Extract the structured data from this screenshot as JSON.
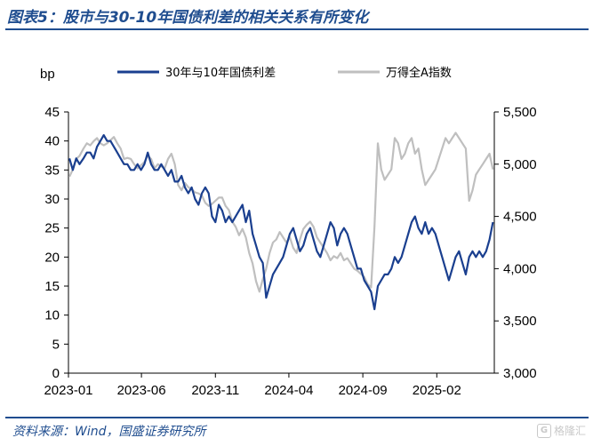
{
  "header": {
    "title": "图表5：股市与30-10年国债利差的相关关系有所变化"
  },
  "footer": {
    "source": "资料来源：Wind，国盛证券研究所",
    "watermark": "格隆汇"
  },
  "colors": {
    "spread": "#1a3f8f",
    "index": "#bfbfbf",
    "accent": "#1f4d8f"
  },
  "chart_data": {
    "type": "line",
    "ylabel": "bp",
    "x_ticks": [
      "2023-01",
      "2023-06",
      "2023-11",
      "2024-04",
      "2024-09",
      "2025-02"
    ],
    "x_range": [
      "2023-01-01",
      "2025-05-31"
    ],
    "y_left": {
      "range": [
        0,
        45
      ],
      "ticks": [
        "0",
        "5",
        "10",
        "15",
        "20",
        "25",
        "30",
        "35",
        "40",
        "45"
      ],
      "tick_values": [
        0,
        5,
        10,
        15,
        20,
        25,
        30,
        35,
        40,
        45
      ]
    },
    "y_right": {
      "range": [
        3000,
        5500
      ],
      "ticks": [
        "3,000",
        "3,500",
        "4,000",
        "4,500",
        "5,000",
        "5,500"
      ],
      "tick_values": [
        3000,
        3500,
        4000,
        4500,
        5000,
        5500
      ]
    },
    "legend_position": "top",
    "grid": false,
    "series": [
      {
        "name": "30年与10年国债利差",
        "axis": "left",
        "points": [
          [
            "2023-01-03",
            37
          ],
          [
            "2023-01-10",
            35
          ],
          [
            "2023-01-17",
            37
          ],
          [
            "2023-01-24",
            36
          ],
          [
            "2023-02-01",
            37
          ],
          [
            "2023-02-08",
            38
          ],
          [
            "2023-02-15",
            38
          ],
          [
            "2023-02-22",
            37
          ],
          [
            "2023-03-01",
            39
          ],
          [
            "2023-03-08",
            40
          ],
          [
            "2023-03-15",
            41
          ],
          [
            "2023-03-22",
            40
          ],
          [
            "2023-03-29",
            40
          ],
          [
            "2023-04-05",
            39
          ],
          [
            "2023-04-12",
            38
          ],
          [
            "2023-04-19",
            37
          ],
          [
            "2023-04-26",
            36
          ],
          [
            "2023-05-03",
            36
          ],
          [
            "2023-05-10",
            35
          ],
          [
            "2023-05-17",
            35
          ],
          [
            "2023-05-24",
            36
          ],
          [
            "2023-05-31",
            35
          ],
          [
            "2023-06-07",
            36
          ],
          [
            "2023-06-14",
            38
          ],
          [
            "2023-06-21",
            36
          ],
          [
            "2023-06-28",
            35
          ],
          [
            "2023-07-05",
            35
          ],
          [
            "2023-07-12",
            36
          ],
          [
            "2023-07-19",
            35
          ],
          [
            "2023-07-26",
            34
          ],
          [
            "2023-08-02",
            35
          ],
          [
            "2023-08-09",
            33
          ],
          [
            "2023-08-16",
            33
          ],
          [
            "2023-08-23",
            34
          ],
          [
            "2023-08-30",
            32
          ],
          [
            "2023-09-06",
            31
          ],
          [
            "2023-09-13",
            32
          ],
          [
            "2023-09-20",
            30
          ],
          [
            "2023-09-27",
            29
          ],
          [
            "2023-10-04",
            31
          ],
          [
            "2023-10-11",
            32
          ],
          [
            "2023-10-18",
            31
          ],
          [
            "2023-10-25",
            27
          ],
          [
            "2023-11-01",
            26
          ],
          [
            "2023-11-08",
            29
          ],
          [
            "2023-11-15",
            28
          ],
          [
            "2023-11-22",
            26
          ],
          [
            "2023-11-29",
            27
          ],
          [
            "2023-12-06",
            26
          ],
          [
            "2023-12-13",
            27
          ],
          [
            "2023-12-20",
            28
          ],
          [
            "2023-12-27",
            29
          ],
          [
            "2024-01-03",
            26
          ],
          [
            "2024-01-10",
            28
          ],
          [
            "2024-01-17",
            24
          ],
          [
            "2024-01-24",
            22
          ],
          [
            "2024-01-31",
            20
          ],
          [
            "2024-02-07",
            19
          ],
          [
            "2024-02-14",
            13
          ],
          [
            "2024-02-21",
            15
          ],
          [
            "2024-02-28",
            17
          ],
          [
            "2024-03-06",
            18
          ],
          [
            "2024-03-13",
            19
          ],
          [
            "2024-03-20",
            20
          ],
          [
            "2024-03-27",
            22
          ],
          [
            "2024-04-03",
            24
          ],
          [
            "2024-04-10",
            25
          ],
          [
            "2024-04-17",
            23
          ],
          [
            "2024-04-24",
            21
          ],
          [
            "2024-05-01",
            22
          ],
          [
            "2024-05-08",
            24
          ],
          [
            "2024-05-15",
            25
          ],
          [
            "2024-05-22",
            23
          ],
          [
            "2024-05-29",
            21
          ],
          [
            "2024-06-05",
            20
          ],
          [
            "2024-06-12",
            22
          ],
          [
            "2024-06-19",
            24
          ],
          [
            "2024-06-26",
            26
          ],
          [
            "2024-07-03",
            25
          ],
          [
            "2024-07-10",
            22
          ],
          [
            "2024-07-17",
            24
          ],
          [
            "2024-07-24",
            25
          ],
          [
            "2024-07-31",
            24
          ],
          [
            "2024-08-07",
            22
          ],
          [
            "2024-08-14",
            20
          ],
          [
            "2024-08-21",
            18
          ],
          [
            "2024-08-28",
            18
          ],
          [
            "2024-09-04",
            16
          ],
          [
            "2024-09-11",
            15
          ],
          [
            "2024-09-18",
            14
          ],
          [
            "2024-09-25",
            11
          ],
          [
            "2024-10-02",
            15
          ],
          [
            "2024-10-09",
            16
          ],
          [
            "2024-10-16",
            17
          ],
          [
            "2024-10-23",
            17
          ],
          [
            "2024-10-30",
            18
          ],
          [
            "2024-11-06",
            20
          ],
          [
            "2024-11-13",
            19
          ],
          [
            "2024-11-20",
            20
          ],
          [
            "2024-11-27",
            22
          ],
          [
            "2024-12-04",
            24
          ],
          [
            "2024-12-11",
            26
          ],
          [
            "2024-12-18",
            27
          ],
          [
            "2024-12-25",
            25
          ],
          [
            "2025-01-01",
            24
          ],
          [
            "2025-01-08",
            26
          ],
          [
            "2025-01-15",
            24
          ],
          [
            "2025-01-22",
            25
          ],
          [
            "2025-01-29",
            24
          ],
          [
            "2025-02-05",
            22
          ],
          [
            "2025-02-12",
            20
          ],
          [
            "2025-02-19",
            18
          ],
          [
            "2025-02-26",
            16
          ],
          [
            "2025-03-05",
            18
          ],
          [
            "2025-03-12",
            20
          ],
          [
            "2025-03-19",
            21
          ],
          [
            "2025-03-26",
            19
          ],
          [
            "2025-04-02",
            17
          ],
          [
            "2025-04-09",
            20
          ],
          [
            "2025-04-16",
            21
          ],
          [
            "2025-04-23",
            20
          ],
          [
            "2025-04-30",
            21
          ],
          [
            "2025-05-07",
            20
          ],
          [
            "2025-05-14",
            21
          ],
          [
            "2025-05-21",
            23
          ],
          [
            "2025-05-28",
            26
          ]
        ]
      },
      {
        "name": "万得全A指数",
        "axis": "right",
        "points": [
          [
            "2023-01-03",
            4880
          ],
          [
            "2023-01-10",
            4950
          ],
          [
            "2023-01-17",
            5050
          ],
          [
            "2023-01-24",
            5080
          ],
          [
            "2023-02-01",
            5150
          ],
          [
            "2023-02-08",
            5200
          ],
          [
            "2023-02-15",
            5180
          ],
          [
            "2023-02-22",
            5220
          ],
          [
            "2023-03-01",
            5250
          ],
          [
            "2023-03-08",
            5200
          ],
          [
            "2023-03-15",
            5180
          ],
          [
            "2023-03-22",
            5200
          ],
          [
            "2023-03-29",
            5230
          ],
          [
            "2023-04-05",
            5260
          ],
          [
            "2023-04-12",
            5200
          ],
          [
            "2023-04-19",
            5150
          ],
          [
            "2023-04-26",
            5050
          ],
          [
            "2023-05-03",
            5060
          ],
          [
            "2023-05-10",
            5050
          ],
          [
            "2023-05-17",
            5000
          ],
          [
            "2023-05-24",
            4960
          ],
          [
            "2023-05-31",
            4990
          ],
          [
            "2023-06-07",
            5020
          ],
          [
            "2023-06-14",
            5080
          ],
          [
            "2023-06-21",
            5050
          ],
          [
            "2023-06-28",
            4960
          ],
          [
            "2023-07-05",
            5000
          ],
          [
            "2023-07-12",
            4980
          ],
          [
            "2023-07-19",
            4960
          ],
          [
            "2023-07-26",
            5050
          ],
          [
            "2023-08-02",
            5100
          ],
          [
            "2023-08-09",
            5000
          ],
          [
            "2023-08-16",
            4800
          ],
          [
            "2023-08-23",
            4750
          ],
          [
            "2023-08-30",
            4820
          ],
          [
            "2023-09-06",
            4780
          ],
          [
            "2023-09-13",
            4760
          ],
          [
            "2023-09-20",
            4730
          ],
          [
            "2023-09-27",
            4720
          ],
          [
            "2023-10-04",
            4700
          ],
          [
            "2023-10-11",
            4630
          ],
          [
            "2023-10-18",
            4600
          ],
          [
            "2023-10-25",
            4620
          ],
          [
            "2023-11-01",
            4650
          ],
          [
            "2023-11-08",
            4680
          ],
          [
            "2023-11-15",
            4680
          ],
          [
            "2023-11-22",
            4600
          ],
          [
            "2023-11-29",
            4560
          ],
          [
            "2023-12-06",
            4450
          ],
          [
            "2023-12-13",
            4400
          ],
          [
            "2023-12-20",
            4320
          ],
          [
            "2023-12-27",
            4380
          ],
          [
            "2024-01-03",
            4300
          ],
          [
            "2024-01-10",
            4150
          ],
          [
            "2024-01-17",
            4050
          ],
          [
            "2024-01-24",
            3880
          ],
          [
            "2024-01-31",
            3780
          ],
          [
            "2024-02-07",
            3900
          ],
          [
            "2024-02-14",
            4000
          ],
          [
            "2024-02-21",
            4150
          ],
          [
            "2024-02-28",
            4250
          ],
          [
            "2024-03-06",
            4280
          ],
          [
            "2024-03-13",
            4350
          ],
          [
            "2024-03-20",
            4300
          ],
          [
            "2024-03-27",
            4250
          ],
          [
            "2024-04-03",
            4300
          ],
          [
            "2024-04-10",
            4200
          ],
          [
            "2024-04-17",
            4150
          ],
          [
            "2024-04-24",
            4280
          ],
          [
            "2024-05-01",
            4380
          ],
          [
            "2024-05-08",
            4420
          ],
          [
            "2024-05-15",
            4450
          ],
          [
            "2024-05-22",
            4400
          ],
          [
            "2024-05-29",
            4300
          ],
          [
            "2024-06-05",
            4250
          ],
          [
            "2024-06-12",
            4200
          ],
          [
            "2024-06-19",
            4150
          ],
          [
            "2024-06-26",
            4080
          ],
          [
            "2024-07-03",
            4120
          ],
          [
            "2024-07-10",
            4100
          ],
          [
            "2024-07-17",
            4150
          ],
          [
            "2024-07-24",
            4080
          ],
          [
            "2024-07-31",
            4100
          ],
          [
            "2024-08-07",
            4050
          ],
          [
            "2024-08-14",
            4000
          ],
          [
            "2024-08-21",
            3980
          ],
          [
            "2024-08-28",
            3950
          ],
          [
            "2024-09-04",
            3920
          ],
          [
            "2024-09-11",
            3850
          ],
          [
            "2024-09-18",
            3820
          ],
          [
            "2024-09-25",
            4400
          ],
          [
            "2024-10-02",
            5200
          ],
          [
            "2024-10-09",
            4950
          ],
          [
            "2024-10-16",
            4850
          ],
          [
            "2024-10-23",
            4900
          ],
          [
            "2024-10-30",
            4950
          ],
          [
            "2024-11-06",
            5250
          ],
          [
            "2024-11-13",
            5200
          ],
          [
            "2024-11-20",
            5050
          ],
          [
            "2024-11-27",
            5100
          ],
          [
            "2024-12-04",
            5200
          ],
          [
            "2024-12-11",
            5250
          ],
          [
            "2024-12-18",
            5100
          ],
          [
            "2024-12-25",
            5150
          ],
          [
            "2025-01-01",
            4950
          ],
          [
            "2025-01-08",
            4800
          ],
          [
            "2025-01-15",
            4850
          ],
          [
            "2025-01-22",
            4900
          ],
          [
            "2025-01-29",
            4950
          ],
          [
            "2025-02-05",
            5050
          ],
          [
            "2025-02-12",
            5150
          ],
          [
            "2025-02-19",
            5250
          ],
          [
            "2025-02-26",
            5200
          ],
          [
            "2025-03-05",
            5250
          ],
          [
            "2025-03-12",
            5300
          ],
          [
            "2025-03-19",
            5250
          ],
          [
            "2025-03-26",
            5200
          ],
          [
            "2025-04-02",
            5150
          ],
          [
            "2025-04-09",
            4650
          ],
          [
            "2025-04-16",
            4750
          ],
          [
            "2025-04-23",
            4900
          ],
          [
            "2025-04-30",
            4950
          ],
          [
            "2025-05-07",
            5000
          ],
          [
            "2025-05-14",
            5050
          ],
          [
            "2025-05-21",
            5100
          ],
          [
            "2025-05-28",
            4950
          ]
        ]
      }
    ]
  }
}
